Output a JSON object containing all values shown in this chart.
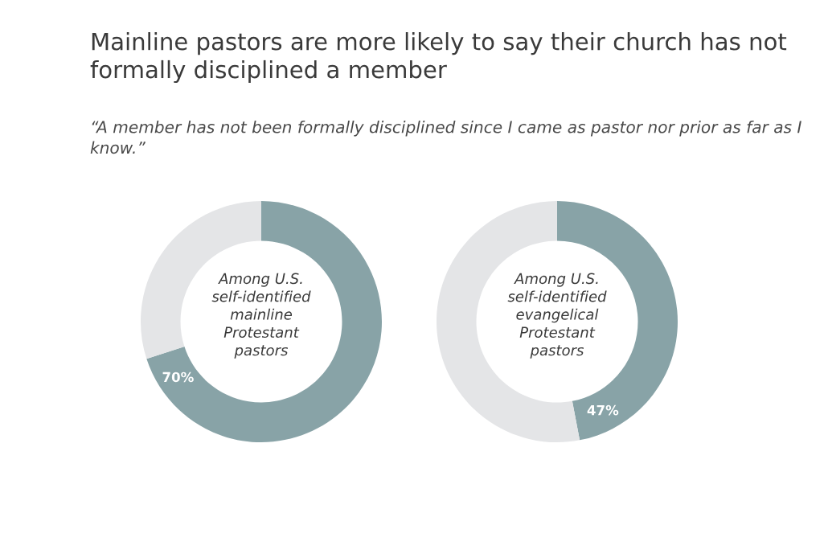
{
  "chart_data": [
    {
      "type": "donut",
      "title": "Mainline pastors are more likely to say their church has not formally disciplined a member",
      "subtitle": "“A member has not been formally disciplined since I came as pastor nor prior as far as I know.”",
      "categories": [
        null,
        null
      ],
      "values": [
        70,
        30
      ],
      "colors": [
        "#88a3a7",
        "#e4e5e7"
      ],
      "value_labels": [
        "70%",
        null
      ],
      "annotations": [
        "Among U.S.\nself-identified\nmainline\nProtestant\npastors"
      ]
    },
    {
      "type": "donut",
      "categories": [
        null,
        null
      ],
      "values": [
        47,
        53
      ],
      "colors": [
        "#88a3a7",
        "#e4e5e7"
      ],
      "value_labels": [
        "47%",
        null
      ],
      "annotations": [
        "Among U.S.\nself-identified\nevangelical\nProtestant\npastors"
      ]
    }
  ]
}
